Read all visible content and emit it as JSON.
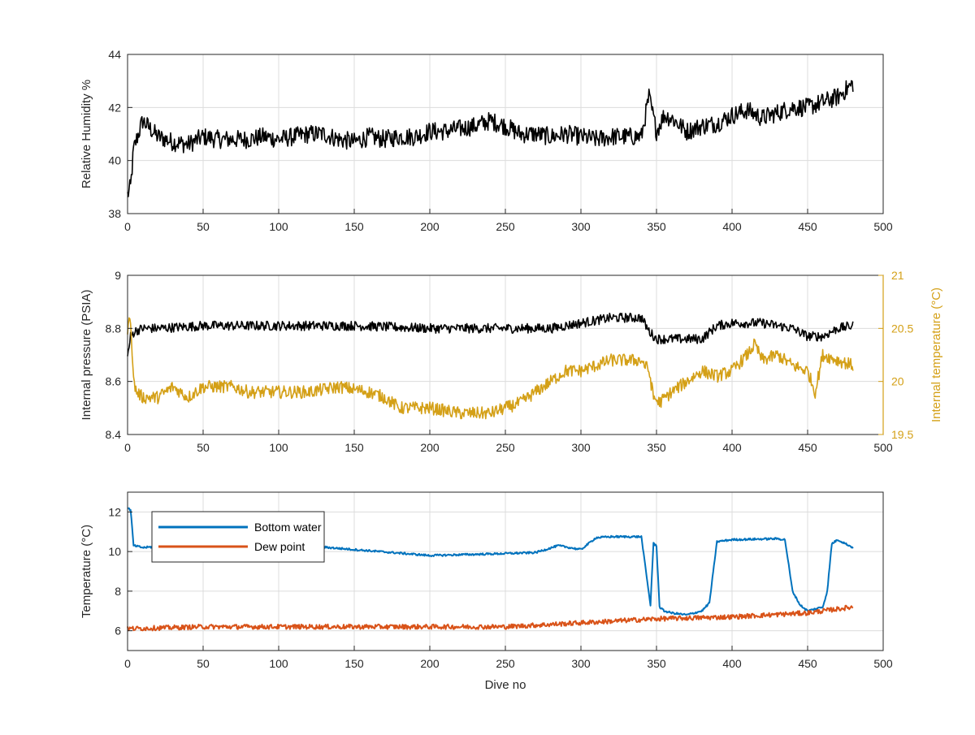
{
  "chart_data": [
    {
      "type": "line",
      "xlabel": "",
      "ylabel": "Relative Humidity %",
      "xlim": [
        0,
        500
      ],
      "ylim": [
        38,
        44
      ],
      "xticks": [
        0,
        50,
        100,
        150,
        200,
        250,
        300,
        350,
        400,
        450,
        500
      ],
      "yticks": [
        38,
        40,
        42,
        44
      ],
      "grid": true,
      "series": [
        {
          "color": "#000000",
          "x": [
            0,
            2,
            4,
            6,
            10,
            20,
            30,
            40,
            50,
            60,
            70,
            80,
            90,
            100,
            110,
            120,
            130,
            140,
            150,
            160,
            170,
            180,
            190,
            200,
            210,
            220,
            230,
            240,
            250,
            260,
            270,
            280,
            290,
            300,
            310,
            320,
            330,
            340,
            345,
            350,
            355,
            360,
            370,
            380,
            390,
            400,
            410,
            420,
            430,
            440,
            450,
            460,
            470,
            480
          ],
          "y": [
            38.7,
            39.0,
            40.4,
            40.8,
            41.5,
            40.9,
            40.7,
            40.6,
            40.9,
            40.8,
            40.8,
            40.8,
            40.9,
            40.8,
            40.9,
            41.0,
            41.0,
            40.8,
            40.7,
            40.9,
            40.8,
            40.9,
            40.9,
            41.1,
            41.1,
            41.2,
            41.3,
            41.5,
            41.3,
            41.0,
            41.0,
            40.9,
            41.0,
            40.9,
            40.8,
            40.9,
            40.9,
            40.9,
            42.4,
            41.1,
            41.7,
            41.6,
            41.1,
            41.3,
            41.4,
            41.7,
            41.9,
            41.6,
            41.8,
            42.0,
            42.0,
            42.2,
            42.4,
            42.9
          ],
          "noise": 0.35
        }
      ]
    },
    {
      "type": "line",
      "xlabel": "",
      "ylabel": "Internal pressure (PSIA)",
      "ylabel_right": "Internal temperature (°C)",
      "xlim": [
        0,
        500
      ],
      "ylim": [
        8.4,
        9.0
      ],
      "ylim_right": [
        19.5,
        21.0
      ],
      "xticks": [
        0,
        50,
        100,
        150,
        200,
        250,
        300,
        350,
        400,
        450,
        500
      ],
      "yticks": [
        8.4,
        8.6,
        8.8,
        9.0
      ],
      "yticks_labels": [
        "8.4",
        "8.6",
        "8.8",
        "9"
      ],
      "yticks_right": [
        19.5,
        20,
        20.5,
        21
      ],
      "yticks_right_labels": [
        "19.5",
        "20",
        "20.5",
        "21"
      ],
      "grid": true,
      "series": [
        {
          "axis": "left",
          "color": "#000000",
          "x": [
            0,
            2,
            5,
            10,
            20,
            50,
            100,
            150,
            200,
            250,
            280,
            300,
            320,
            330,
            340,
            345,
            350,
            360,
            380,
            390,
            400,
            420,
            440,
            450,
            460,
            470,
            480
          ],
          "y": [
            8.69,
            8.77,
            8.79,
            8.8,
            8.8,
            8.81,
            8.81,
            8.81,
            8.8,
            8.8,
            8.8,
            8.82,
            8.84,
            8.84,
            8.84,
            8.79,
            8.76,
            8.76,
            8.76,
            8.81,
            8.82,
            8.82,
            8.8,
            8.77,
            8.77,
            8.8,
            8.81
          ],
          "noise": 0.018
        },
        {
          "axis": "right",
          "color": "#D4A017",
          "x": [
            0,
            2,
            4,
            6,
            10,
            20,
            30,
            40,
            50,
            60,
            70,
            80,
            90,
            100,
            120,
            140,
            160,
            170,
            180,
            200,
            220,
            240,
            250,
            260,
            270,
            280,
            290,
            300,
            320,
            330,
            340,
            345,
            348,
            352,
            360,
            370,
            380,
            390,
            400,
            410,
            415,
            420,
            430,
            440,
            450,
            455,
            460,
            470,
            480
          ],
          "y": [
            20.5,
            20.6,
            20.0,
            19.9,
            19.85,
            19.85,
            19.95,
            19.85,
            19.95,
            19.95,
            19.95,
            19.9,
            19.9,
            19.9,
            19.9,
            19.95,
            19.9,
            19.85,
            19.75,
            19.75,
            19.7,
            19.7,
            19.75,
            19.8,
            19.9,
            20.0,
            20.1,
            20.1,
            20.2,
            20.2,
            20.2,
            20.1,
            19.85,
            19.8,
            19.9,
            20.0,
            20.1,
            20.05,
            20.1,
            20.25,
            20.35,
            20.2,
            20.25,
            20.15,
            20.1,
            19.9,
            20.25,
            20.2,
            20.15
          ],
          "noise": 0.06
        }
      ]
    },
    {
      "type": "line",
      "xlabel": "Dive no",
      "ylabel": "Temperature (°C)",
      "xlim": [
        0,
        500
      ],
      "ylim": [
        5,
        13
      ],
      "xticks": [
        0,
        50,
        100,
        150,
        200,
        250,
        300,
        350,
        400,
        450,
        500
      ],
      "yticks": [
        6,
        8,
        10,
        12
      ],
      "grid": true,
      "legend": "top-left",
      "series": [
        {
          "name": "Bottom water",
          "color": "#0072BD",
          "x": [
            0,
            2,
            4,
            10,
            50,
            100,
            150,
            200,
            250,
            270,
            285,
            300,
            310,
            320,
            340,
            343,
            346,
            348,
            350,
            352,
            355,
            360,
            370,
            380,
            385,
            390,
            400,
            430,
            435,
            440,
            445,
            450,
            460,
            463,
            466,
            470,
            480
          ],
          "y": [
            12.2,
            12.1,
            10.3,
            10.2,
            10.4,
            10.4,
            10.1,
            9.8,
            9.9,
            9.95,
            10.3,
            10.1,
            10.7,
            10.75,
            10.75,
            9.0,
            7.3,
            10.4,
            10.3,
            7.2,
            7.0,
            6.9,
            6.8,
            7.0,
            7.4,
            10.5,
            10.6,
            10.65,
            10.6,
            8.0,
            7.3,
            7.0,
            7.2,
            8.0,
            10.4,
            10.6,
            10.2
          ],
          "noise": 0.05
        },
        {
          "name": "Dew point",
          "color": "#D95319",
          "x": [
            0,
            50,
            100,
            150,
            200,
            250,
            300,
            350,
            400,
            450,
            480
          ],
          "y": [
            6.1,
            6.2,
            6.2,
            6.2,
            6.2,
            6.2,
            6.4,
            6.6,
            6.7,
            6.9,
            7.2
          ],
          "noise": 0.12
        }
      ]
    }
  ]
}
